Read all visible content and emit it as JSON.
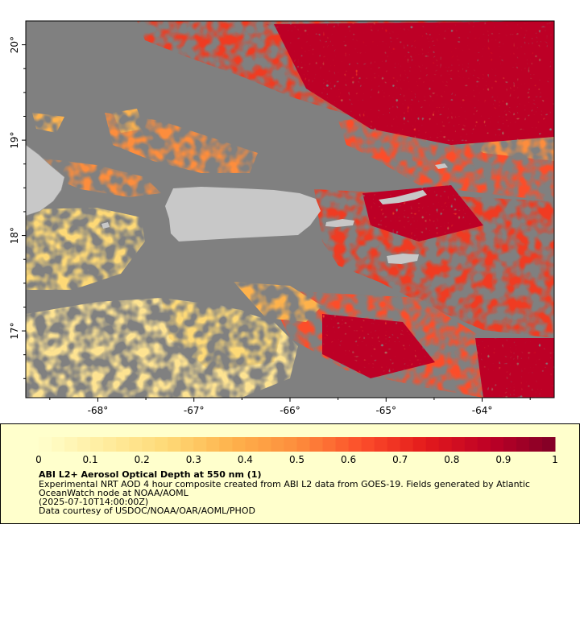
{
  "map": {
    "extent": {
      "lon": [
        -68.75,
        -63.25
      ],
      "lat": [
        16.3,
        20.25
      ]
    },
    "lat_ticks": [
      {
        "value": 17,
        "label": "17°"
      },
      {
        "value": 18,
        "label": "18°"
      },
      {
        "value": 19,
        "label": "19°"
      },
      {
        "value": 20,
        "label": "20°"
      }
    ],
    "lon_ticks": [
      {
        "value": -68,
        "label": "-68°"
      },
      {
        "value": -67,
        "label": "-67°"
      },
      {
        "value": -66,
        "label": "-66°"
      },
      {
        "value": -65,
        "label": "-65°"
      },
      {
        "value": -64,
        "label": "-64°"
      }
    ],
    "colors": {
      "no_data": "#808080",
      "land": "#c8c8c8",
      "frame": "#000000"
    }
  },
  "legend": {
    "title": "ABI L2+ Aerosol Optical Depth at 550 nm (1)",
    "description": "Experimental NRT AOD 4 hour composite created from ABI L2 data from GOES-19. Fields generated by Atlantic OceanWatch node at NOAA/AOML",
    "time": "(2025-07-10T14:00:00Z)",
    "credit": "Data courtesy of USDOC/NOAA/OAR/AOML/PHOD",
    "colorbar": {
      "range": [
        0,
        1
      ],
      "ticks": [
        "0",
        "0.1",
        "0.2",
        "0.3",
        "0.4",
        "0.5",
        "0.6",
        "0.7",
        "0.8",
        "0.9",
        "1"
      ],
      "stops": [
        "#ffffcc",
        "#ffeda0",
        "#fed976",
        "#feb24c",
        "#fd8d3c",
        "#fc4e2a",
        "#e31a1c",
        "#bd0026",
        "#800026"
      ],
      "background": "#ffffcc"
    }
  }
}
